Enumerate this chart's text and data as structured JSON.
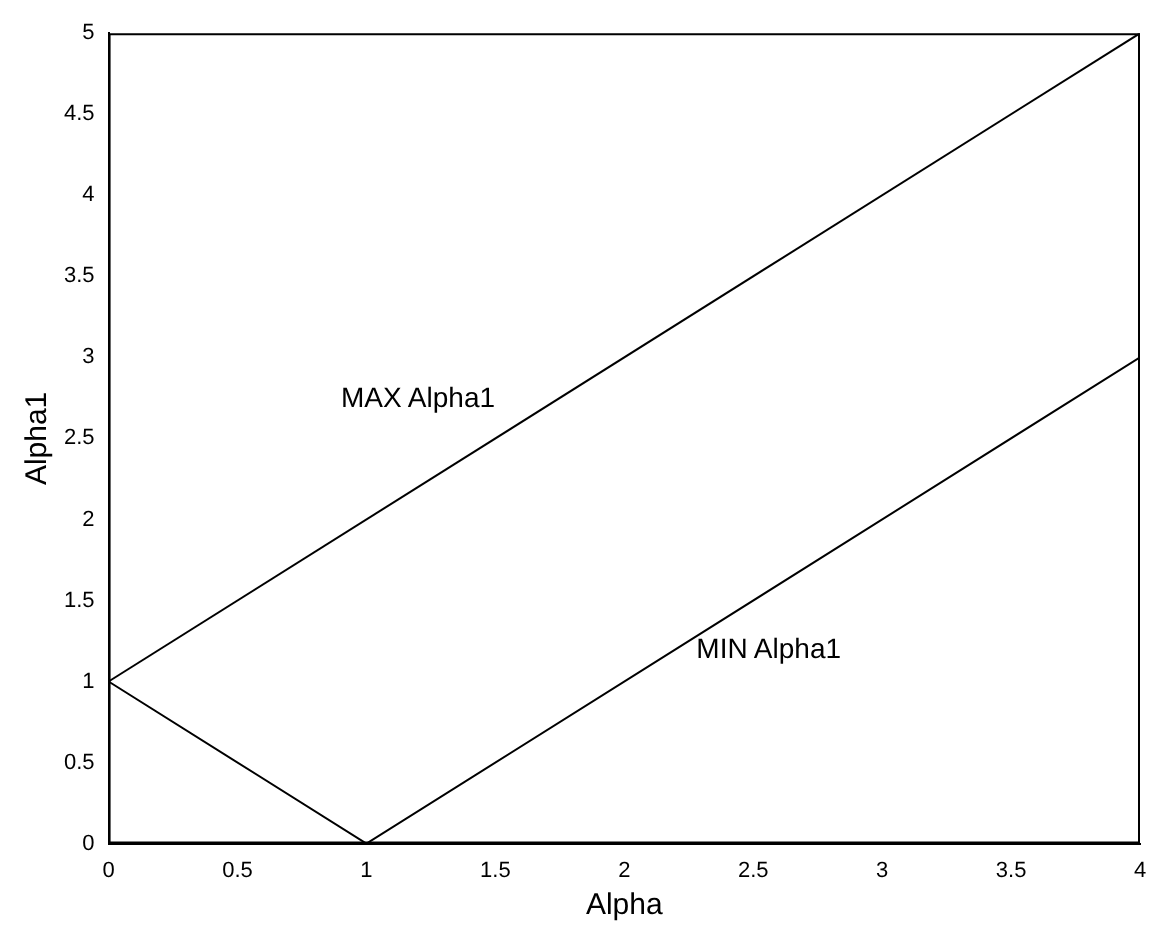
{
  "chart_data": {
    "type": "line",
    "xlabel": "Alpha",
    "ylabel": "Alpha1",
    "series": [
      {
        "name": "MAX Alpha1",
        "color": "#000000",
        "x": [
          0,
          4
        ],
        "values": [
          1,
          5
        ]
      },
      {
        "name": "MIN Alpha1",
        "color": "#000000",
        "x": [
          0,
          1,
          4
        ],
        "values": [
          1,
          0,
          3
        ]
      }
    ],
    "xlim": [
      0,
      4
    ],
    "xticks": [
      0,
      0.5,
      1,
      1.5,
      2,
      2.5,
      3,
      3.5,
      4
    ],
    "ylim": [
      0,
      5
    ],
    "yticks": [
      0,
      0.5,
      1,
      1.5,
      2,
      2.5,
      3,
      3.5,
      4,
      4.5,
      5
    ],
    "grid": false,
    "legend": false,
    "marker": "none",
    "line_style": "solid"
  }
}
